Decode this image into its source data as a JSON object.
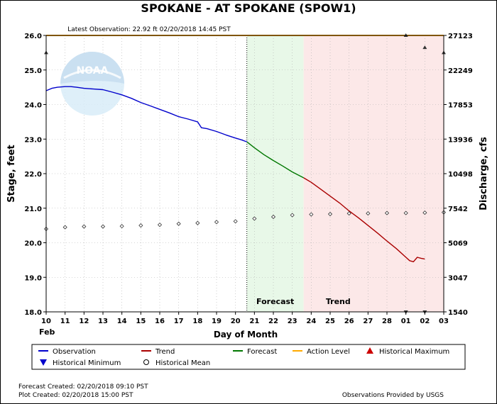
{
  "chart_data": {
    "type": "line",
    "title": "SPOKANE - AT SPOKANE  (SPOW1)",
    "latest_observation": "Latest Observation: 22.92 ft 02/20/2018 14:45 PST",
    "xlabel": "Day of Month",
    "x_month_label": "Feb",
    "ylabel_left": "Stage, feet",
    "ylabel_right": "Discharge, cfs",
    "x_day_ticks": [
      "10",
      "11",
      "12",
      "13",
      "14",
      "15",
      "16",
      "17",
      "18",
      "19",
      "20",
      "21",
      "22",
      "23",
      "24",
      "25",
      "26",
      "27",
      "28",
      "01",
      "02",
      "03"
    ],
    "xlim": [
      10,
      31
    ],
    "ylim": [
      18.0,
      26.0
    ],
    "y_ticks": [
      "18.0",
      "19.0",
      "20.0",
      "21.0",
      "22.0",
      "23.0",
      "24.0",
      "25.0",
      "26.0"
    ],
    "y_ticks_right": [
      "1540",
      "3047",
      "5069",
      "7542",
      "10498",
      "13936",
      "17853",
      "22249",
      "27123"
    ],
    "region_labels": {
      "forecast": "Forecast",
      "trend": "Trend"
    },
    "observation_end_x": 20.6,
    "forecast_range": [
      20.6,
      23.6
    ],
    "trend_range": [
      23.6,
      31.0
    ],
    "series": [
      {
        "name": "Observation",
        "color": "#0000cc",
        "x": [
          10.0,
          10.3,
          10.6,
          11.0,
          11.3,
          11.6,
          12.0,
          12.5,
          13.0,
          13.5,
          14.0,
          14.5,
          15.0,
          15.5,
          16.0,
          16.5,
          17.0,
          17.5,
          18.0,
          18.2,
          18.5,
          19.0,
          19.5,
          20.0,
          20.3,
          20.6
        ],
        "y": [
          24.4,
          24.47,
          24.5,
          24.52,
          24.52,
          24.5,
          24.47,
          24.45,
          24.43,
          24.36,
          24.28,
          24.18,
          24.06,
          23.96,
          23.86,
          23.76,
          23.65,
          23.58,
          23.5,
          23.33,
          23.3,
          23.22,
          23.12,
          23.03,
          22.98,
          22.92
        ]
      },
      {
        "name": "Forecast",
        "color": "#007700",
        "x": [
          20.6,
          21.0,
          21.5,
          22.0,
          22.5,
          23.0,
          23.6
        ],
        "y": [
          22.92,
          22.75,
          22.55,
          22.38,
          22.22,
          22.05,
          21.88
        ]
      },
      {
        "name": "Trend",
        "color": "#aa0000",
        "x": [
          23.6,
          24.0,
          24.5,
          25.0,
          25.5,
          26.0,
          26.5,
          27.0,
          27.5,
          28.0,
          28.5,
          29.0,
          29.2,
          29.4,
          29.6,
          29.8,
          30.0
        ],
        "y": [
          21.88,
          21.75,
          21.55,
          21.35,
          21.15,
          20.92,
          20.72,
          20.5,
          20.28,
          20.05,
          19.83,
          19.58,
          19.48,
          19.45,
          19.58,
          19.55,
          19.53
        ]
      },
      {
        "name": "Historical Mean",
        "color": "#000000",
        "x": [
          10,
          11,
          12,
          13,
          14,
          15,
          16,
          17,
          18,
          19,
          20,
          21,
          22,
          23,
          24,
          25,
          26,
          27,
          28,
          29,
          30,
          31
        ],
        "y": [
          20.4,
          20.45,
          20.47,
          20.47,
          20.48,
          20.5,
          20.52,
          20.55,
          20.57,
          20.6,
          20.62,
          20.7,
          20.75,
          20.8,
          20.82,
          20.83,
          20.85,
          20.85,
          20.86,
          20.86,
          20.87,
          20.88
        ]
      }
    ],
    "action_level": {
      "name": "Action Level",
      "color": "#ffaa00",
      "value": 26.0
    },
    "historical_maximum": {
      "name": "Historical Maximum",
      "color": "#cc0000",
      "x": [
        29,
        30
      ],
      "y": [
        26.0,
        25.65
      ]
    },
    "historical_minimum": {
      "name": "Historical Minimum",
      "color": "#0000cc",
      "x": [
        29,
        30
      ],
      "y": [
        18.0,
        18.0
      ]
    },
    "legend": [
      {
        "label": "Observation",
        "kind": "line",
        "color": "#0000cc"
      },
      {
        "label": "Trend",
        "kind": "line",
        "color": "#aa0000"
      },
      {
        "label": "Forecast",
        "kind": "line",
        "color": "#007700"
      },
      {
        "label": "Action Level",
        "kind": "line",
        "color": "#ffaa00"
      },
      {
        "label": "Historical Maximum",
        "kind": "tri-up",
        "color": "#cc0000"
      },
      {
        "label": "Historical Minimum",
        "kind": "tri-down",
        "color": "#0000cc"
      },
      {
        "label": "Historical Mean",
        "kind": "diamond",
        "color": "#000000"
      }
    ],
    "footer": {
      "forecast_created": "Forecast Created: 02/20/2018 09:10 PST",
      "plot_created": "Plot Created: 02/20/2018 15:00 PST",
      "provided_by": "Observations Provided by USGS"
    },
    "logo_text": "NOAA",
    "colors": {
      "forecast_bg": "#e8f8e8",
      "trend_bg": "#fce8e8",
      "grid": "#b0b0b0"
    }
  }
}
